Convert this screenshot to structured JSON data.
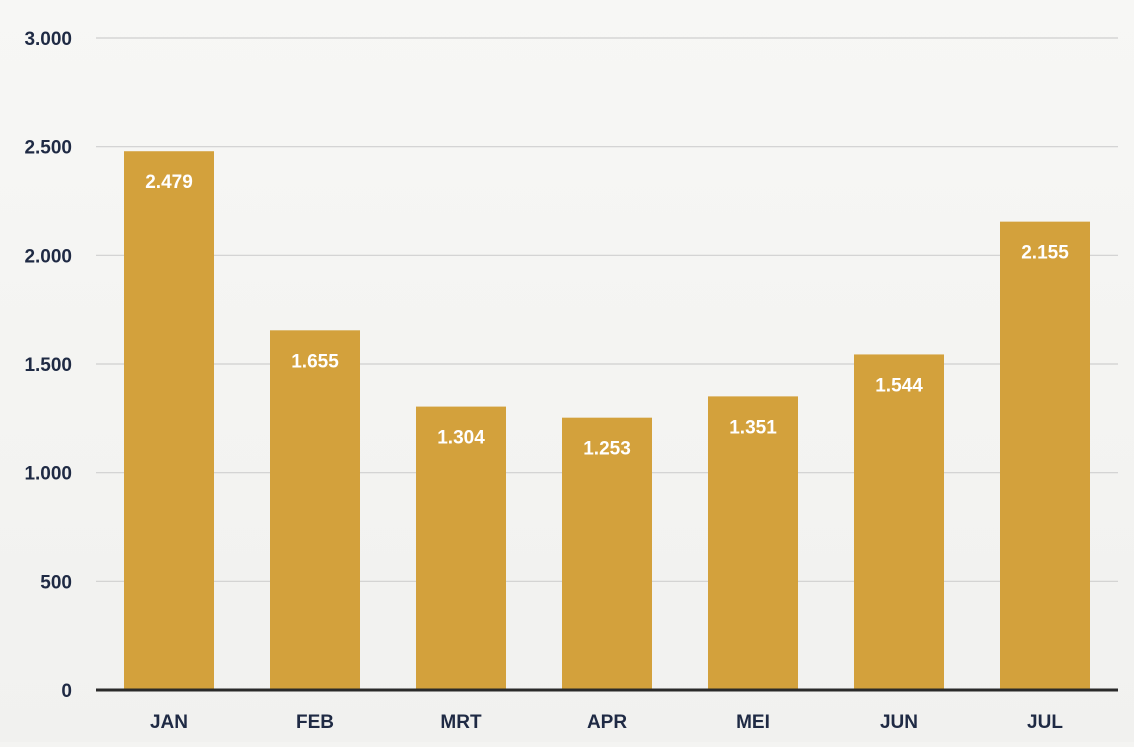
{
  "chart_data": {
    "type": "bar",
    "title": "",
    "xlabel": "",
    "ylabel": "",
    "categories": [
      "JAN",
      "FEB",
      "MRT",
      "APR",
      "MEI",
      "JUN",
      "JUL"
    ],
    "values": [
      2479,
      1655,
      1304,
      1253,
      1351,
      1544,
      2155
    ],
    "value_labels": [
      "2.479",
      "1.655",
      "1.304",
      "1.253",
      "1.351",
      "1.544",
      "2.155"
    ],
    "ylim": [
      0,
      3000
    ],
    "yticks": [
      0,
      500,
      1000,
      1500,
      2000,
      2500,
      3000
    ],
    "ytick_labels": [
      "0",
      "500",
      "1.000",
      "1.500",
      "2.000",
      "2.500",
      "3.000"
    ],
    "grid": true,
    "legend": "none",
    "colors": {
      "bar": "#d3a13c",
      "bar_label": "#ffffff",
      "gridline": "#cfcfcf",
      "axis_line": "#2a2a2a",
      "tick_text": "#1f2a44"
    }
  }
}
